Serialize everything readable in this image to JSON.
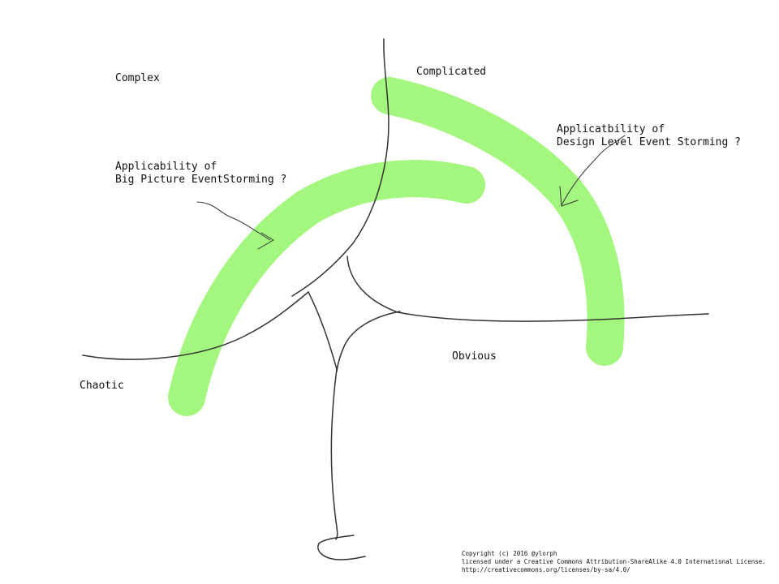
{
  "colors": {
    "background": "#ffffff",
    "highlight": "#a3f77f",
    "ink": "#333333"
  },
  "domains": {
    "complex": "Complex",
    "complicated": "Complicated",
    "chaotic": "Chaotic",
    "obvious": "Obvious"
  },
  "annotations": {
    "big_picture_line1": "Applicability of",
    "big_picture_line2": "Big Picture EventStorming ?",
    "design_level_line1": "Applicatbility of",
    "design_level_line2": "Design Level Event Storming ?"
  },
  "copyright": {
    "line1": "Copyright (c) 2016 @ylorph",
    "line2": "licensed under a Creative Commons Attribution-ShareAlike 4.0 International License.",
    "line3": "http://creativecommons.org/licenses/by-sa/4.0/"
  }
}
